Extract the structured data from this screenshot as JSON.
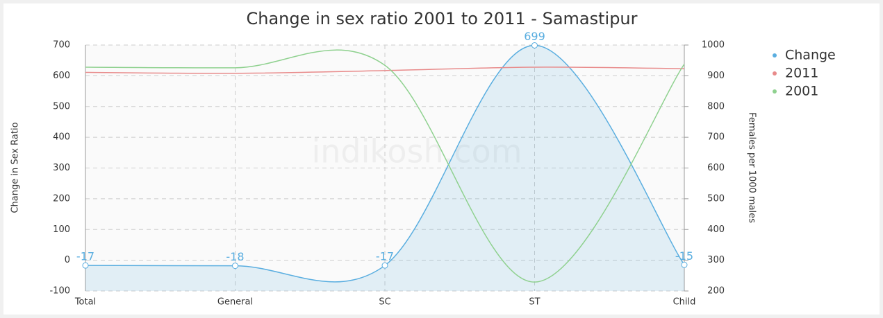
{
  "chart_data": {
    "type": "line",
    "title": "Change in sex ratio 2001 to 2011 - Samastipur",
    "watermark": "indikosh.com",
    "ylabel": "Change in Sex Ratio",
    "y2label": "Females per 1000 males",
    "categories": [
      "Total",
      "General",
      "SC",
      "ST",
      "Child"
    ],
    "ylim": [
      -100,
      700
    ],
    "yticks": [
      -100,
      0,
      100,
      200,
      300,
      400,
      500,
      600,
      700
    ],
    "y2lim": [
      200,
      1000
    ],
    "y2ticks": [
      200,
      300,
      400,
      500,
      600,
      700,
      800,
      900,
      1000
    ],
    "grid": true,
    "legend": "right",
    "series": [
      {
        "name": "Change",
        "color": "#5aaee0",
        "values": [
          -17,
          -18,
          -17,
          699,
          -15
        ],
        "area": true,
        "data_labels": true
      },
      {
        "name": "2011",
        "color": "#e88a8a",
        "values": [
          911,
          908,
          917,
          928,
          923
        ],
        "axis": "y2"
      },
      {
        "name": "2001",
        "color": "#8fd18f",
        "values": [
          928,
          926,
          934,
          229,
          938
        ],
        "axis": "y2"
      }
    ]
  }
}
